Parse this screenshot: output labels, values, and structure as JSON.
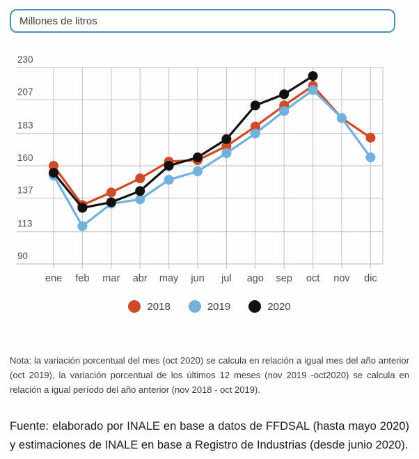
{
  "title_box": {
    "label": "Millones de litros"
  },
  "chart_data": {
    "type": "line",
    "title": "Millones de litros",
    "categories": [
      "ene",
      "feb",
      "mar",
      "abr",
      "may",
      "jun",
      "jul",
      "ago",
      "sep",
      "oct",
      "nov",
      "dic"
    ],
    "series": [
      {
        "name": "2018",
        "color": "#d04a27",
        "values": [
          160,
          132,
          141,
          151,
          163,
          164,
          174,
          188,
          203,
          217,
          194,
          180
        ]
      },
      {
        "name": "2019",
        "color": "#70b1de",
        "values": [
          153,
          117,
          133,
          136,
          150,
          156,
          169,
          183,
          199,
          214,
          194,
          166
        ]
      },
      {
        "name": "2020",
        "color": "#111111",
        "values": [
          155,
          130,
          134,
          142,
          160,
          166,
          179,
          203,
          211,
          224,
          null,
          null
        ]
      }
    ],
    "ylim": [
      90,
      230
    ],
    "yticks": [
      90,
      113,
      137,
      160,
      183,
      207,
      230
    ],
    "grid": "on",
    "legend_position": "bottom",
    "grid_color": "#c9c9c9",
    "axis_label_color": "#4d4d4d"
  },
  "nota": {
    "text": "Nota: la variación porcentual del mes (oct 2020) se calcula en relación a igual mes del año anterior (oct 2019), la variación porcentual de los últimos 12 meses (nov 2019 -oct2020) se calcula en relación a igual período del año anterior (nov 2018 - oct 2019)."
  },
  "fuente": {
    "text": "Fuente: elaborado por INALE en base a datos de FFDSAL (hasta mayo 2020) y estimaciones de INALE en base a Registro de Industrias (desde junio 2020)."
  }
}
